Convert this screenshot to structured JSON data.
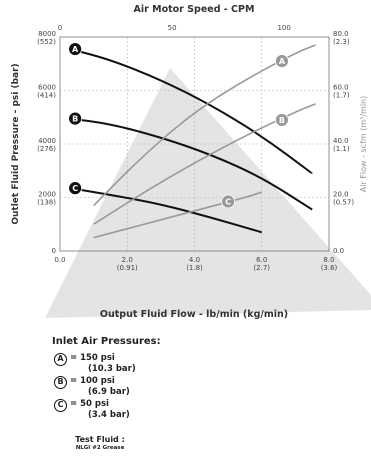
{
  "chart_data": {
    "type": "line",
    "title": "Air Motor Speed - CPM",
    "xlabel": "Output Fluid Flow - lb/min (kg/min)",
    "ylabel": "Outlet Fluid Pressure - psi (bar)",
    "y2label": "Air Flow - scfm (m³/min)",
    "xlim": [
      0,
      8
    ],
    "ylim": [
      0,
      8000
    ],
    "y2lim": [
      0,
      80
    ],
    "x2lim": [
      0,
      120
    ],
    "grid": true,
    "x_ticks": [
      {
        "value": 0,
        "label": "0.0",
        "sub": ""
      },
      {
        "value": 2,
        "label": "2.0",
        "sub": "(0.91)"
      },
      {
        "value": 4,
        "label": "4.0",
        "sub": "(1.8)"
      },
      {
        "value": 6,
        "label": "6.0",
        "sub": "(2.7)"
      },
      {
        "value": 8,
        "label": "8.0",
        "sub": "(3.6)"
      }
    ],
    "y_ticks": [
      {
        "value": 0,
        "label": "0",
        "sub": ""
      },
      {
        "value": 2000,
        "label": "2000",
        "sub": "(138)"
      },
      {
        "value": 4000,
        "label": "4000",
        "sub": "(276)"
      },
      {
        "value": 6000,
        "label": "6000",
        "sub": "(414)"
      },
      {
        "value": 8000,
        "label": "8000",
        "sub": "(552)"
      }
    ],
    "y2_ticks": [
      {
        "value": 0,
        "label": "0.0",
        "sub": ""
      },
      {
        "value": 20,
        "label": "20.0",
        "sub": "(0.57)"
      },
      {
        "value": 40,
        "label": "40.0",
        "sub": "(1.1)"
      },
      {
        "value": 60,
        "label": "60.0",
        "sub": "(1.7)"
      },
      {
        "value": 80,
        "label": "80.0",
        "sub": "(2.3)"
      }
    ],
    "x2_ticks": [
      {
        "value": 0,
        "label": "0"
      },
      {
        "value": 50,
        "label": "50"
      },
      {
        "value": 100,
        "label": "100"
      }
    ],
    "series": [
      {
        "name": "A",
        "axis": "pressure",
        "color": "#111111",
        "x": [
          0.3,
          1.5,
          3.0,
          4.5,
          6.0,
          7.5
        ],
        "y": [
          7550,
          7150,
          6400,
          5450,
          4300,
          2900
        ],
        "label_at": {
          "x": 0.45,
          "y": 7550
        }
      },
      {
        "name": "B",
        "axis": "pressure",
        "color": "#111111",
        "x": [
          0.3,
          1.5,
          3.0,
          4.5,
          6.0,
          7.5
        ],
        "y": [
          4950,
          4750,
          4250,
          3600,
          2750,
          1550
        ],
        "label_at": {
          "x": 0.45,
          "y": 4950
        }
      },
      {
        "name": "C",
        "axis": "pressure",
        "color": "#111111",
        "x": [
          0.3,
          1.5,
          3.0,
          4.5,
          6.0
        ],
        "y": [
          2350,
          2100,
          1750,
          1250,
          700
        ],
        "label_at": {
          "x": 0.45,
          "y": 2350
        }
      },
      {
        "name": "A",
        "axis": "air",
        "color": "#999999",
        "x": [
          1.0,
          2.5,
          4.0,
          5.5,
          7.0,
          7.6
        ],
        "y": [
          17,
          36,
          52,
          64,
          74,
          77
        ],
        "label_at": {
          "x": 6.6,
          "y": 71
        }
      },
      {
        "name": "B",
        "axis": "air",
        "color": "#999999",
        "x": [
          1.0,
          2.5,
          4.0,
          5.5,
          7.0,
          7.6
        ],
        "y": [
          10,
          22,
          33,
          43,
          52,
          55
        ],
        "label_at": {
          "x": 6.6,
          "y": 49
        }
      },
      {
        "name": "C",
        "axis": "air",
        "color": "#999999",
        "x": [
          1.0,
          2.5,
          4.0,
          5.5,
          6.0
        ],
        "y": [
          5,
          10,
          15,
          20,
          22
        ],
        "label_at": {
          "x": 5.0,
          "y": 18.5
        }
      }
    ]
  },
  "legend": {
    "title": "Inlet Air Pressures:",
    "items": [
      {
        "badge": "A",
        "line1": "= 150 psi",
        "line2": "(10.3 bar)"
      },
      {
        "badge": "B",
        "line1": "= 100 psi",
        "line2": "(6.9 bar)"
      },
      {
        "badge": "C",
        "line1": "= 50 psi",
        "line2": "(3.4 bar)"
      }
    ]
  },
  "test_fluid": {
    "title": "Test Fluid :",
    "value": "NLGI #2 Grease"
  }
}
